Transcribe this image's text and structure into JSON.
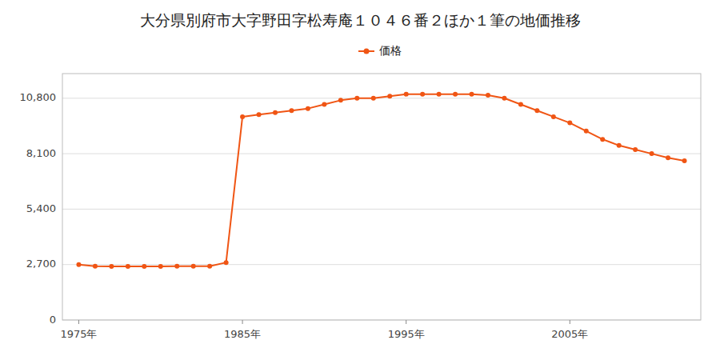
{
  "chart_data": {
    "type": "line",
    "title": "大分県別府市大字野田字松寿庵１０４６番２ほか１筆の地価推移",
    "x": [
      1975,
      1976,
      1977,
      1978,
      1979,
      1980,
      1981,
      1982,
      1983,
      1984,
      1985,
      1986,
      1987,
      1988,
      1989,
      1990,
      1991,
      1992,
      1993,
      1994,
      1995,
      1996,
      1997,
      1998,
      1999,
      2000,
      2001,
      2002,
      2003,
      2004,
      2005,
      2006,
      2007,
      2008,
      2009,
      2010,
      2011,
      2012
    ],
    "series": [
      {
        "name": "価格",
        "color": "#f05514",
        "marker": "circle",
        "values": [
          2700,
          2620,
          2610,
          2610,
          2610,
          2610,
          2620,
          2620,
          2620,
          2800,
          9900,
          10000,
          10100,
          10200,
          10300,
          10500,
          10700,
          10800,
          10800,
          10900,
          11000,
          11000,
          11000,
          11000,
          11000,
          10950,
          10800,
          10500,
          10200,
          9900,
          9600,
          9200,
          8800,
          8500,
          8300,
          8100,
          7900,
          7750
        ]
      }
    ],
    "xlim": [
      1974,
      2013
    ],
    "xticks": [
      {
        "value": 1975,
        "label": "1975年"
      },
      {
        "value": 1985,
        "label": "1985年"
      },
      {
        "value": 1995,
        "label": "1995年"
      },
      {
        "value": 2005,
        "label": "2005年"
      }
    ],
    "ylim": [
      0,
      12000
    ],
    "yticks": [
      0,
      {
        "value": 2700,
        "label": "2,700"
      },
      {
        "value": 5400,
        "label": "5,400"
      },
      {
        "value": 8100,
        "label": "8,100"
      },
      {
        "value": 10800,
        "label": "10,800"
      }
    ],
    "grid": true,
    "legend": "top"
  }
}
